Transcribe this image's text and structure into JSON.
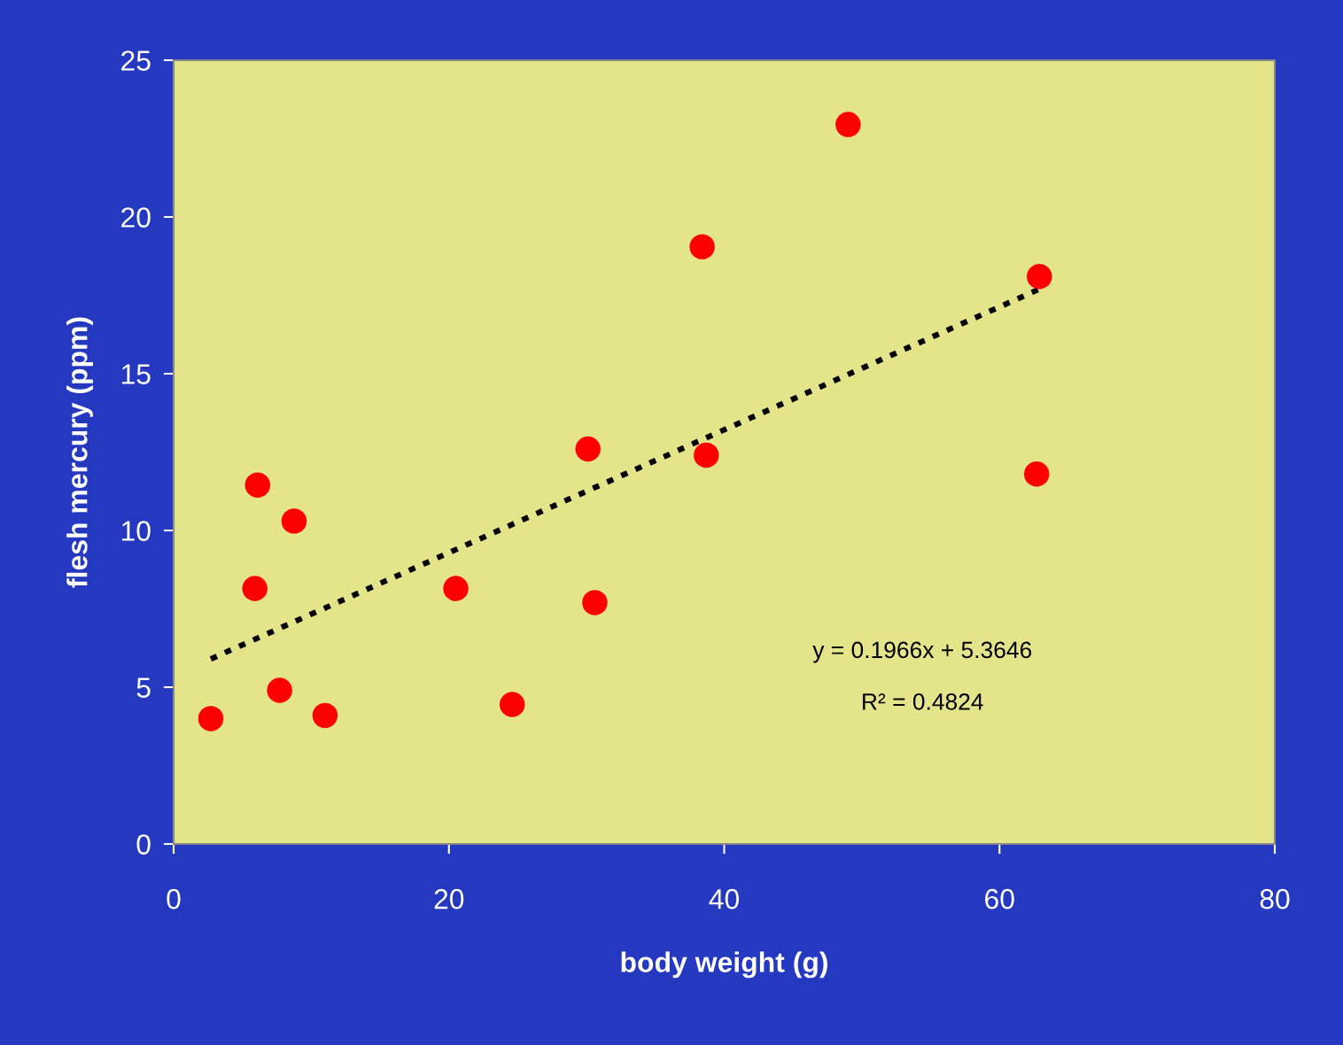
{
  "chart_data": {
    "type": "scatter",
    "xlabel": "body weight (g)",
    "ylabel": "flesh mercury (ppm)",
    "xlim": [
      0,
      80
    ],
    "ylim": [
      0,
      25
    ],
    "xticks": [
      0,
      20,
      40,
      60,
      80
    ],
    "yticks": [
      0,
      5,
      10,
      15,
      20,
      25
    ],
    "grid": false,
    "legend": false,
    "series": [
      {
        "marker": "circle",
        "color": "#ff0000",
        "x": [
          2.7,
          6.1,
          5.9,
          8.75,
          7.7,
          11.0,
          20.5,
          24.6,
          30.1,
          30.6,
          38.4,
          38.7,
          49.0,
          62.9,
          62.7
        ],
        "values": [
          4.0,
          11.45,
          8.15,
          10.3,
          4.9,
          4.1,
          8.15,
          4.45,
          12.6,
          7.7,
          19.05,
          12.4,
          22.95,
          18.1,
          11.8
        ]
      },
      {
        "type": "line",
        "color": "#000000",
        "line_style": "dotted",
        "x": [
          2.7,
          62.9
        ],
        "values": [
          5.9,
          17.7
        ]
      }
    ],
    "annotations": [
      "y = 0.1966x + 5.3646",
      "R² = 0.4824"
    ]
  }
}
